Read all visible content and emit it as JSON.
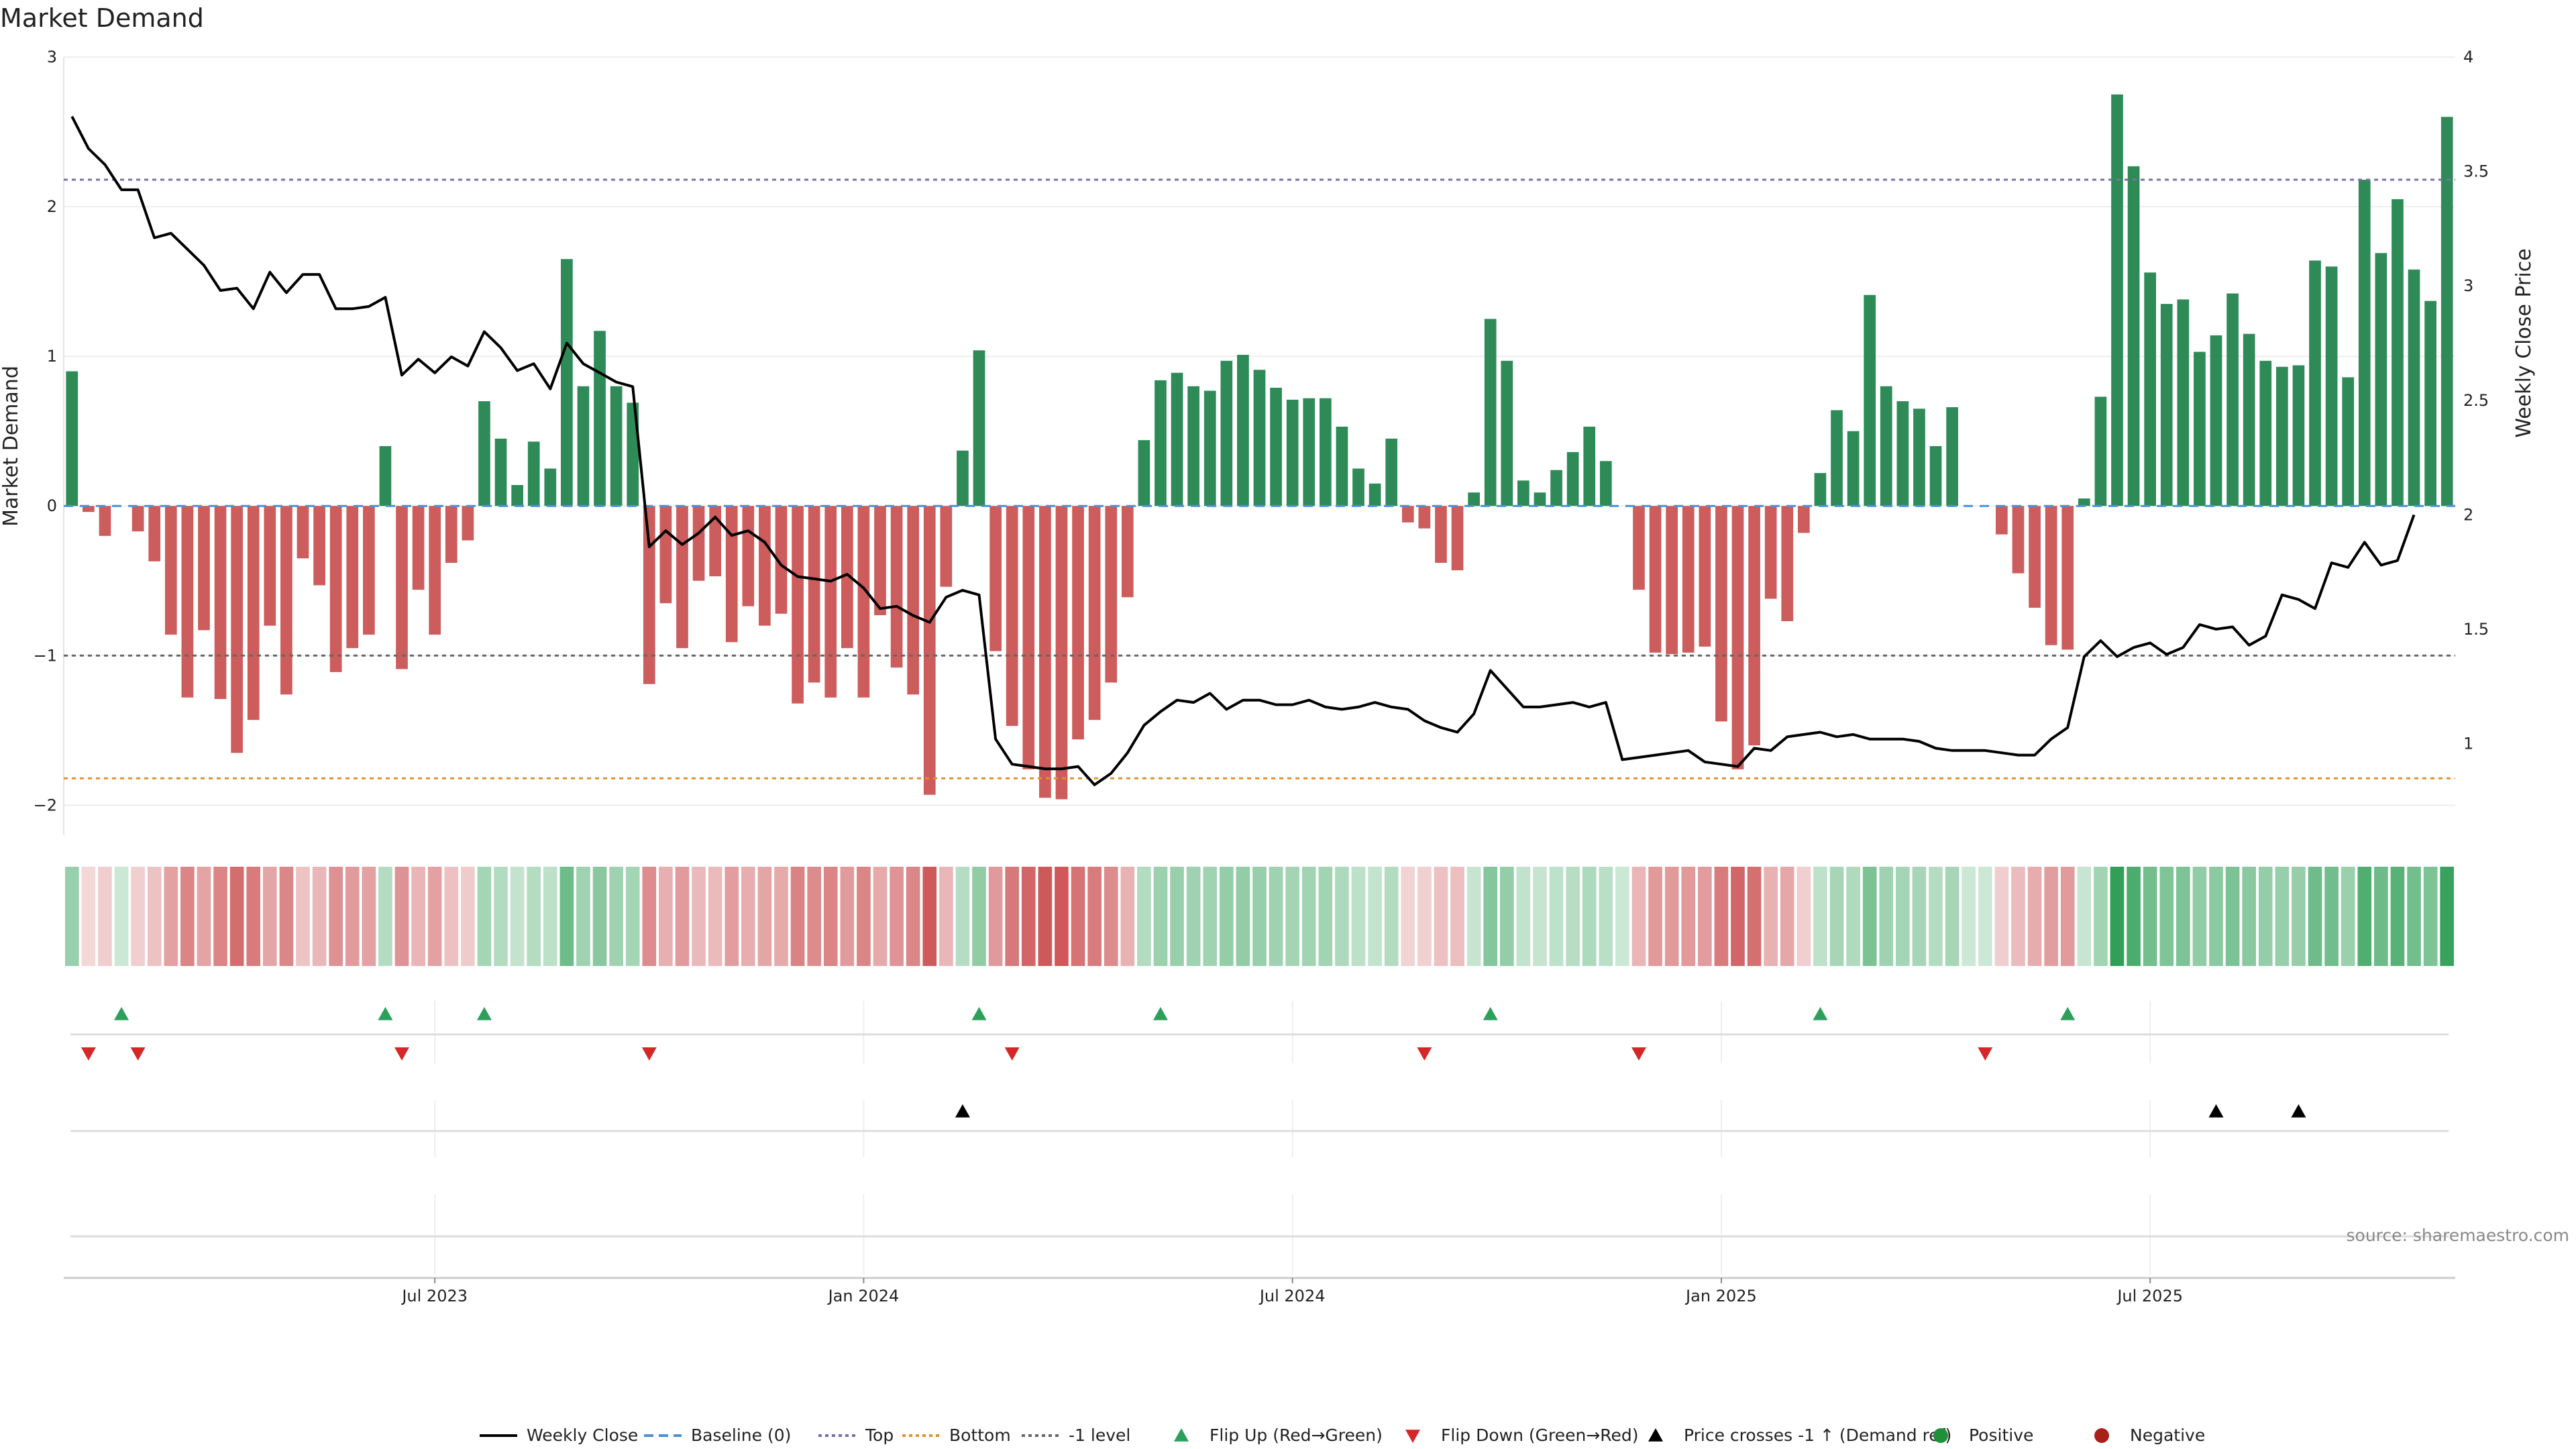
{
  "chart_data": {
    "type": "bar",
    "title": "Market Demand",
    "ylabel": "Market Demand",
    "y2label": "Weekly Close Price",
    "ylim": [
      -2.2,
      3.0
    ],
    "y2lim": [
      0.6,
      4.0
    ],
    "yticks": [
      {
        "v": 3,
        "label": "3"
      },
      {
        "v": 2,
        "label": "2"
      },
      {
        "v": 1,
        "label": "1"
      },
      {
        "v": 0,
        "label": "0"
      },
      {
        "v": -1,
        "label": "−1"
      },
      {
        "v": -2,
        "label": "−2"
      }
    ],
    "y2ticks": [
      {
        "v": 4,
        "label": "4"
      },
      {
        "v": 3.5,
        "label": "3.5"
      },
      {
        "v": 3,
        "label": "3"
      },
      {
        "v": 2.5,
        "label": "2.5"
      },
      {
        "v": 2,
        "label": "2"
      },
      {
        "v": 1.5,
        "label": "1.5"
      },
      {
        "v": 1,
        "label": "1"
      }
    ],
    "xticks": [
      {
        "week": 22,
        "label": "Jul 2023"
      },
      {
        "week": 48,
        "label": "Jan 2024"
      },
      {
        "week": 74,
        "label": "Jul 2024"
      },
      {
        "week": 100,
        "label": "Jan 2025"
      },
      {
        "week": 126,
        "label": "Jul 2025"
      }
    ],
    "reference_lines": {
      "top": 2.18,
      "bottom": -1.82,
      "minus_one": -1.0,
      "baseline": 0
    },
    "demand": [
      0.9,
      -0.04,
      -0.2,
      0.0,
      -0.17,
      -0.37,
      -0.86,
      -1.28,
      -0.83,
      -1.29,
      -1.65,
      -1.43,
      -0.8,
      -1.26,
      -0.35,
      -0.53,
      -1.11,
      -0.95,
      -0.86,
      0.4,
      -1.09,
      -0.56,
      -0.86,
      -0.38,
      -0.23,
      0.7,
      0.45,
      0.14,
      0.43,
      0.25,
      1.65,
      0.8,
      1.17,
      0.8,
      0.69,
      -1.19,
      -0.65,
      -0.95,
      -0.5,
      -0.47,
      -0.91,
      -0.67,
      -0.8,
      -0.72,
      -1.32,
      -1.18,
      -1.28,
      -0.95,
      -1.28,
      -0.73,
      -1.08,
      -1.26,
      -1.93,
      -0.54,
      0.37,
      1.04,
      -0.97,
      -1.47,
      -1.76,
      -1.95,
      -1.96,
      -1.56,
      -1.43,
      -1.18,
      -0.61,
      0.44,
      0.84,
      0.89,
      0.8,
      0.77,
      0.97,
      1.01,
      0.91,
      0.79,
      0.71,
      0.72,
      0.72,
      0.53,
      0.25,
      0.15,
      0.45,
      -0.11,
      -0.15,
      -0.38,
      -0.43,
      0.09,
      1.25,
      0.97,
      0.17,
      0.09,
      0.24,
      0.36,
      0.53,
      0.3,
      0.0,
      -0.56,
      -0.98,
      -0.99,
      -0.98,
      -0.94,
      -1.44,
      -1.76,
      -1.6,
      -0.62,
      -0.77,
      -0.18,
      0.22,
      0.64,
      0.5,
      1.41,
      0.8,
      0.7,
      0.65,
      0.4,
      0.66,
      0.0,
      0.0,
      -0.19,
      -0.45,
      -0.68,
      -0.93,
      -0.96,
      0.05,
      0.73,
      2.75,
      2.27,
      1.56,
      1.35,
      1.38,
      1.03,
      1.14,
      1.42,
      1.15,
      0.97,
      0.93,
      0.94,
      1.64,
      1.6,
      0.86,
      2.18,
      1.69,
      2.05,
      1.58,
      1.37,
      2.6
    ],
    "price": [
      3.74,
      3.6,
      3.53,
      3.42,
      3.42,
      3.21,
      3.23,
      3.16,
      3.09,
      2.98,
      2.99,
      2.9,
      3.06,
      2.97,
      3.05,
      3.05,
      2.9,
      2.9,
      2.91,
      2.95,
      2.61,
      2.68,
      2.62,
      2.69,
      2.65,
      2.8,
      2.73,
      2.63,
      2.66,
      2.55,
      2.75,
      2.66,
      2.62,
      2.58,
      2.56,
      1.86,
      1.93,
      1.87,
      1.92,
      1.99,
      1.91,
      1.93,
      1.88,
      1.78,
      1.73,
      1.72,
      1.71,
      1.74,
      1.68,
      1.59,
      1.6,
      1.56,
      1.53,
      1.64,
      1.67,
      1.65,
      1.02,
      0.91,
      0.9,
      0.89,
      0.89,
      0.9,
      0.82,
      0.87,
      0.96,
      1.08,
      1.14,
      1.19,
      1.18,
      1.22,
      1.15,
      1.19,
      1.19,
      1.17,
      1.17,
      1.19,
      1.16,
      1.15,
      1.16,
      1.18,
      1.16,
      1.15,
      1.1,
      1.07,
      1.05,
      1.13,
      1.32,
      1.24,
      1.16,
      1.16,
      1.17,
      1.18,
      1.16,
      1.18,
      0.93,
      0.94,
      0.95,
      0.96,
      0.97,
      0.92,
      0.91,
      0.9,
      0.98,
      0.97,
      1.03,
      1.04,
      1.05,
      1.03,
      1.04,
      1.02,
      1.02,
      1.02,
      1.01,
      0.98,
      0.97,
      0.97,
      0.97,
      0.96,
      0.95,
      0.95,
      1.02,
      1.07,
      1.38,
      1.45,
      1.38,
      1.42,
      1.44,
      1.39,
      1.42,
      1.52,
      1.5,
      1.51,
      1.43,
      1.47,
      1.65,
      1.63,
      1.59,
      1.79,
      1.77,
      1.88,
      1.78,
      1.8,
      2.0
    ],
    "flip_up_weeks": [
      3,
      19,
      25,
      55,
      66,
      86,
      106,
      121
    ],
    "flip_down_weeks": [
      1,
      4,
      20,
      35,
      57,
      82,
      95,
      116
    ],
    "price_cross_weeks": [
      54,
      130,
      135
    ],
    "legend": [
      {
        "label": "Weekly Close",
        "kind": "line",
        "color": "#000000"
      },
      {
        "label": "Baseline (0)",
        "kind": "dash",
        "color": "#4a90d9"
      },
      {
        "label": "Top",
        "kind": "dot",
        "color": "#7a6fa8"
      },
      {
        "label": "Bottom",
        "kind": "dot",
        "color": "#e0922a"
      },
      {
        "label": "-1 level",
        "kind": "dot",
        "color": "#666666"
      },
      {
        "label": "Flip Up (Red→Green)",
        "kind": "tri-up",
        "color": "#2ca05a"
      },
      {
        "label": "Flip Down (Green→Red)",
        "kind": "tri-down",
        "color": "#d62728"
      },
      {
        "label": "Price crosses -1 ↑ (Demand ref)",
        "kind": "tri-up",
        "color": "#000000"
      },
      {
        "label": "Positive",
        "kind": "dot-circle",
        "color": "#1f8f3a"
      },
      {
        "label": "Negative",
        "kind": "dot-circle",
        "color": "#a8201a"
      }
    ],
    "colors": {
      "positive": "#2e8b57",
      "negative": "#cd5c5c",
      "price": "#000000"
    }
  },
  "source": "source: sharemaestro.com"
}
